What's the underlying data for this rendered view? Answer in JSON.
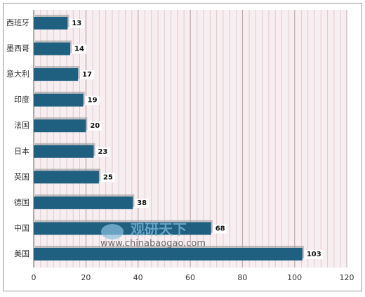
{
  "chart_data": {
    "type": "hbar",
    "categories": [
      "西班牙",
      "墨西哥",
      "意大利",
      "印度",
      "法国",
      "日本",
      "英国",
      "德国",
      "中国",
      "美国"
    ],
    "values": [
      13,
      14,
      17,
      19,
      20,
      23,
      25,
      38,
      68,
      103
    ],
    "color": "#1f5f80",
    "xlim": [
      0,
      120
    ],
    "xticks": [
      0,
      20,
      40,
      60,
      80,
      100,
      120
    ],
    "grid": true,
    "watermark": {
      "title": "观研天下",
      "url": "www.chinabaogao.com"
    }
  }
}
